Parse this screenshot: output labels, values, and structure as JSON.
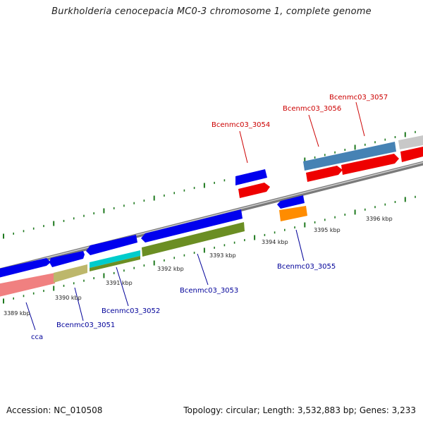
{
  "title": "Burkholderia cenocepacia MC0-3 chromosome 1, complete genome",
  "footer": {
    "accession": "Accession: NC_010508",
    "summary": "Topology: circular; Length: 3,532,883 bp; Genes: 3,233"
  },
  "colors": {
    "backbone": "#8c8c8c",
    "tick": "#1f7a1f",
    "forward_gene": "#0000ee",
    "reverse_gene": "#ee0000",
    "label_forward": "#cc0000",
    "label_reverse": "#000099"
  },
  "map": {
    "tick_labels": [
      "3389 kbp",
      "3390 kbp",
      "3391 kbp",
      "3392 kbp",
      "3393 kbp",
      "3394 kbp",
      "3395 kbp",
      "3396 kbp"
    ],
    "features": [
      {
        "label": "cca",
        "strand": "reverse",
        "ring": "cog",
        "color": "#f08080"
      },
      {
        "label": "Bcenmc03_3051",
        "strand": "reverse",
        "ring": "cog",
        "color": "#bdb76b"
      },
      {
        "label": "Bcenmc03_3052",
        "strand": "reverse",
        "ring": "cog",
        "color": "#00cccc"
      },
      {
        "label": "Bcenmc03_3053",
        "strand": "reverse",
        "ring": "cog",
        "color": "#6b8e23"
      },
      {
        "label": "Bcenmc03_3054",
        "strand": "forward",
        "ring": "cog",
        "color": "#ee0000"
      },
      {
        "label": "Bcenmc03_3055",
        "strand": "reverse",
        "ring": "cog",
        "color": "#ff8c00"
      },
      {
        "label": "Bcenmc03_3056",
        "strand": "forward",
        "ring": "cog",
        "color": "#ee0000"
      },
      {
        "label": "Bcenmc03_3057",
        "strand": "forward",
        "ring": "cog",
        "color": "#4682b4"
      }
    ]
  }
}
